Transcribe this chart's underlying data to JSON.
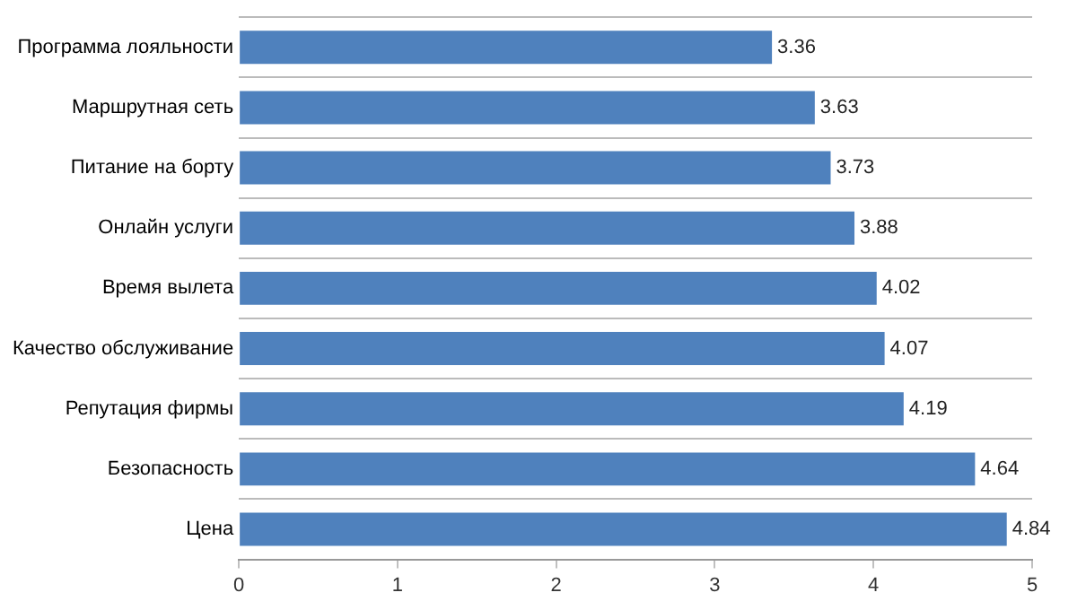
{
  "chart_data": {
    "type": "bar",
    "orientation": "horizontal",
    "categories": [
      "Программа лояльности",
      "Маршрутная сеть",
      "Питание на борту",
      "Онлайн услуги",
      "Время вылета",
      "Качество обслуживание",
      "Репутация фирмы",
      "Безопасность",
      "Цена"
    ],
    "values": [
      3.36,
      3.63,
      3.73,
      3.88,
      4.02,
      4.07,
      4.19,
      4.64,
      4.84
    ],
    "color": "#4f81bd",
    "xlim": [
      0,
      5
    ],
    "xticks": [
      0,
      1,
      2,
      3,
      4,
      5
    ],
    "grid": "y",
    "legend": false,
    "data_labels": true
  }
}
